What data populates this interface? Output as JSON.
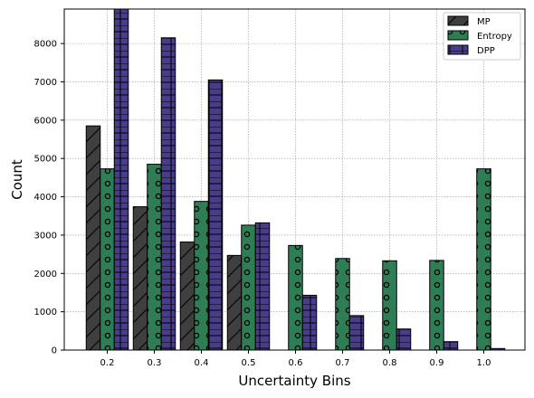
{
  "chart_data": {
    "type": "bar",
    "xlabel": "Uncertainty Bins",
    "ylabel": "Count",
    "categories": [
      "0.2",
      "0.3",
      "0.4",
      "0.5",
      "0.6",
      "0.7",
      "0.8",
      "0.9",
      "1.0"
    ],
    "series": [
      {
        "name": "MP",
        "values": [
          5850,
          3740,
          2820,
          2470,
          0,
          0,
          0,
          0,
          0
        ],
        "color": "#3f3f3f",
        "hatch": "diagonal"
      },
      {
        "name": "Entropy",
        "values": [
          4730,
          4850,
          3880,
          3260,
          2730,
          2390,
          2330,
          2340,
          4730
        ],
        "color": "#2e7d55",
        "hatch": "circles"
      },
      {
        "name": "DPP",
        "values": [
          8900,
          8150,
          7050,
          3320,
          1430,
          900,
          550,
          220,
          40
        ],
        "color": "#483d8b",
        "hatch": "grid"
      }
    ],
    "ylim": [
      0,
      8900
    ],
    "yticks": [
      0,
      1000,
      2000,
      3000,
      4000,
      5000,
      6000,
      7000,
      8000
    ],
    "grid": true,
    "legend_position": "top-right"
  }
}
